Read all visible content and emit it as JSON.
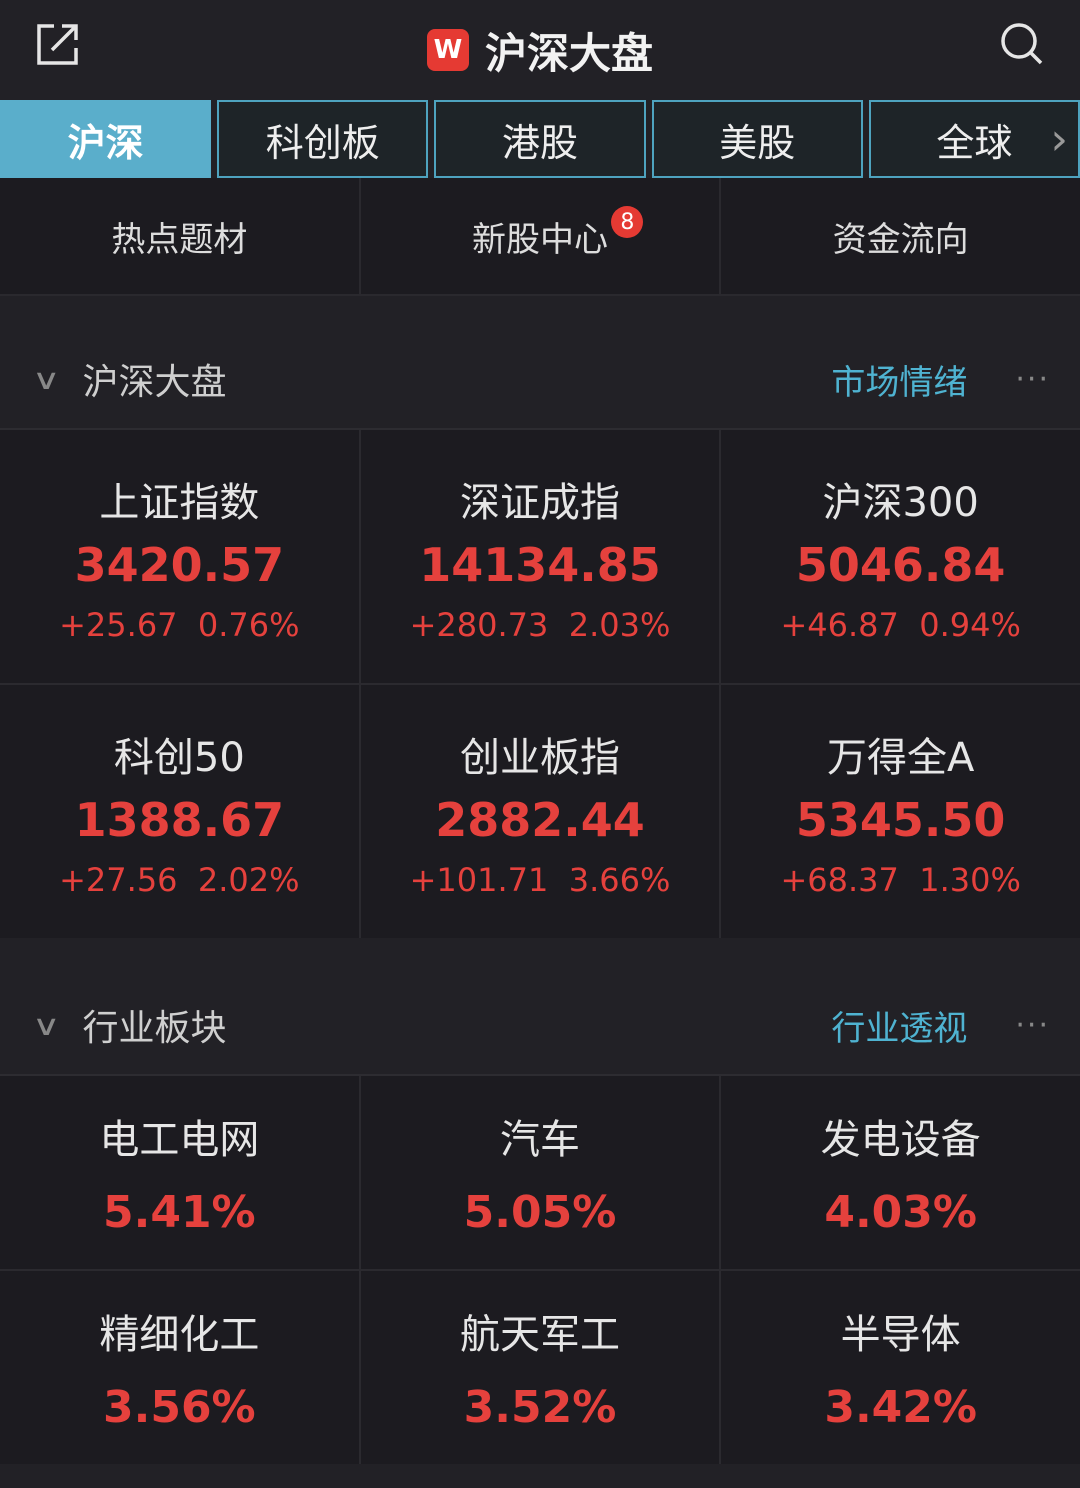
{
  "header": {
    "title": "沪深大盘",
    "logo": "W",
    "left_icon": "share-external-icon",
    "right_icon": "search-icon"
  },
  "tabs": [
    {
      "label": "沪深",
      "active": true
    },
    {
      "label": "科创板"
    },
    {
      "label": "港股"
    },
    {
      "label": "美股"
    },
    {
      "label": "全球"
    }
  ],
  "subnav": [
    {
      "label": "热点题材"
    },
    {
      "label": "新股中心",
      "badge": "8"
    },
    {
      "label": "资金流向"
    }
  ],
  "market_section": {
    "title": "沪深大盘",
    "link": "市场情绪",
    "more": "···"
  },
  "indices": [
    {
      "name": "上证指数",
      "value": "3420.57",
      "change": "+25.67",
      "pct": "0.76%"
    },
    {
      "name": "深证成指",
      "value": "14134.85",
      "change": "+280.73",
      "pct": "2.03%"
    },
    {
      "name": "沪深300",
      "value": "5046.84",
      "change": "+46.87",
      "pct": "0.94%"
    },
    {
      "name": "科创50",
      "value": "1388.67",
      "change": "+27.56",
      "pct": "2.02%"
    },
    {
      "name": "创业板指",
      "value": "2882.44",
      "change": "+101.71",
      "pct": "3.66%"
    },
    {
      "name": "万得全A",
      "value": "5345.50",
      "change": "+68.37",
      "pct": "1.30%"
    }
  ],
  "industry_section": {
    "title": "行业板块",
    "link": "行业透视",
    "more": "···"
  },
  "industries": [
    {
      "name": "电工电网",
      "pct": "5.41%"
    },
    {
      "name": "汽车",
      "pct": "5.05%"
    },
    {
      "name": "发电设备",
      "pct": "4.03%"
    },
    {
      "name": "精细化工",
      "pct": "3.56%"
    },
    {
      "name": "航天军工",
      "pct": "3.52%"
    },
    {
      "name": "半导体",
      "pct": "3.42%"
    }
  ],
  "colors": {
    "up": "#e5413d",
    "accent": "#4fb3d1",
    "active_tab": "#5aaecb"
  }
}
